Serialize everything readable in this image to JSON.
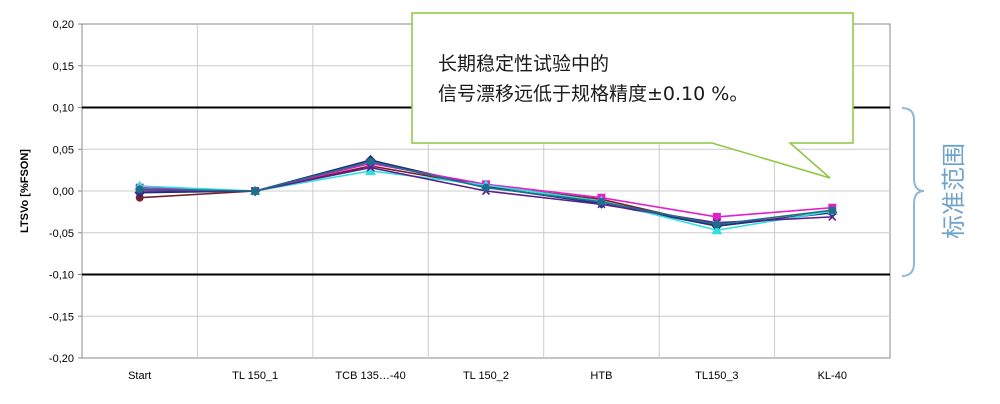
{
  "chart_data": {
    "type": "line",
    "title": "",
    "xlabel": "",
    "ylabel": "LTSVo [%FSON]",
    "ylim": [
      -0.2,
      0.2
    ],
    "yticks": [
      0.2,
      0.15,
      0.1,
      0.05,
      0.0,
      -0.05,
      -0.1,
      -0.15,
      -0.2
    ],
    "ytick_labels": [
      "0,20",
      "0,15",
      "0,10",
      "0,05",
      "0,00",
      "-0,05",
      "-0,10",
      "-0,15",
      "-0,20"
    ],
    "categories": [
      "Start",
      "TL 150_1",
      "TCB 135…-40",
      "TL 150_2",
      "HTB",
      "TL150_3",
      "KL-40"
    ],
    "limit_lines": [
      0.1,
      -0.1
    ],
    "grid": true,
    "series": [
      {
        "color": "#7a1f2a",
        "marker": "circle",
        "values": [
          -0.008,
          0.0,
          0.03,
          0.006,
          -0.01,
          -0.042,
          -0.025
        ]
      },
      {
        "color": "#1f2f7a",
        "marker": "diamond",
        "values": [
          -0.002,
          0.0,
          0.037,
          0.005,
          -0.015,
          -0.042,
          -0.026
        ]
      },
      {
        "color": "#e020c8",
        "marker": "square",
        "values": [
          0.004,
          0.0,
          0.033,
          0.008,
          -0.008,
          -0.031,
          -0.02
        ]
      },
      {
        "color": "#2fe0e0",
        "marker": "triangle",
        "values": [
          0.006,
          0.0,
          0.024,
          0.007,
          -0.012,
          -0.047,
          -0.024
        ]
      },
      {
        "color": "#5a1f8a",
        "marker": "x",
        "values": [
          0.0,
          0.0,
          0.028,
          0.0,
          -0.016,
          -0.038,
          -0.031
        ]
      },
      {
        "color": "#1f6e8a",
        "marker": "circle",
        "values": [
          0.002,
          0.0,
          0.035,
          0.004,
          -0.013,
          -0.04,
          -0.023
        ]
      }
    ]
  },
  "callout": {
    "line1": "长期稳定性试验中的",
    "line2": "信号漂移远低于规格精度±0.10 %。",
    "border_color": "#8dc63f"
  },
  "range_annotation": {
    "label": "标准范围",
    "color": "#6fa3cc"
  }
}
